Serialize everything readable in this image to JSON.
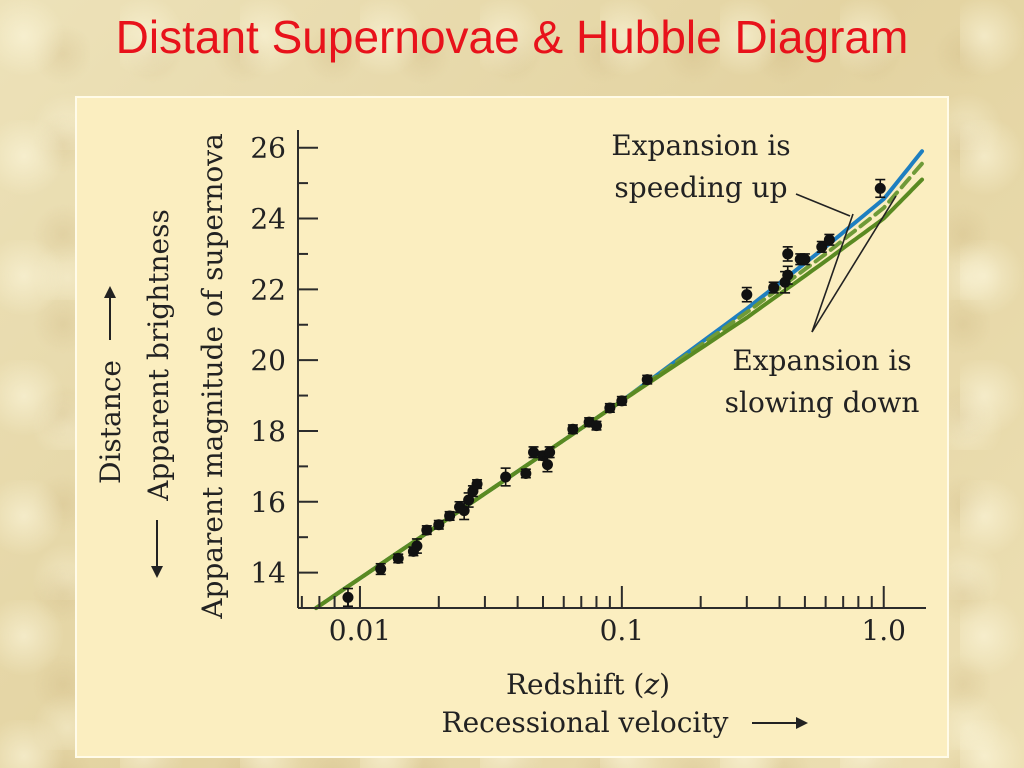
{
  "title": "Distant Supernovae & Hubble Diagram",
  "chart_data": {
    "type": "scatter",
    "x_scale": "log",
    "xlim": [
      0.0058,
      1.45
    ],
    "ylim": [
      13.0,
      26.5
    ],
    "x_ticks": [
      0.01,
      0.1,
      1.0
    ],
    "x_tick_labels": [
      "0.01",
      "0.1",
      "1.0"
    ],
    "y_ticks": [
      14,
      16,
      18,
      20,
      22,
      24,
      26
    ],
    "y_tick_labels": [
      "14",
      "16",
      "18",
      "20",
      "22",
      "24",
      "26"
    ],
    "xlabel_line1_text": "Redshift (",
    "xlabel_line1_var": "z",
    "xlabel_line1_close": ")",
    "xlabel_line2": "Recessional velocity",
    "ylabel_outer": "Distance",
    "ylabel_middle": "Apparent brightness",
    "ylabel_inner": "Apparent magnitude of supernova",
    "annotation_speeding": [
      "Expansion is",
      "speeding up"
    ],
    "annotation_slowing": [
      "Expansion is",
      "slowing down"
    ],
    "points": [
      {
        "x": 0.009,
        "y": 13.3,
        "err": 0.25
      },
      {
        "x": 0.012,
        "y": 14.1,
        "err": 0.15
      },
      {
        "x": 0.014,
        "y": 14.4,
        "err": 0.12
      },
      {
        "x": 0.016,
        "y": 14.6,
        "err": 0.12
      },
      {
        "x": 0.0165,
        "y": 14.75,
        "err": 0.2
      },
      {
        "x": 0.018,
        "y": 15.2,
        "err": 0.12
      },
      {
        "x": 0.02,
        "y": 15.35,
        "err": 0.12
      },
      {
        "x": 0.022,
        "y": 15.6,
        "err": 0.12
      },
      {
        "x": 0.024,
        "y": 15.85,
        "err": 0.15
      },
      {
        "x": 0.025,
        "y": 15.75,
        "err": 0.25
      },
      {
        "x": 0.026,
        "y": 16.05,
        "err": 0.2
      },
      {
        "x": 0.027,
        "y": 16.3,
        "err": 0.15
      },
      {
        "x": 0.028,
        "y": 16.5,
        "err": 0.12
      },
      {
        "x": 0.036,
        "y": 16.7,
        "err": 0.25
      },
      {
        "x": 0.043,
        "y": 16.8,
        "err": 0.12
      },
      {
        "x": 0.046,
        "y": 17.4,
        "err": 0.15
      },
      {
        "x": 0.05,
        "y": 17.3,
        "err": 0.12
      },
      {
        "x": 0.052,
        "y": 17.05,
        "err": 0.2
      },
      {
        "x": 0.053,
        "y": 17.4,
        "err": 0.15
      },
      {
        "x": 0.065,
        "y": 18.05,
        "err": 0.12
      },
      {
        "x": 0.075,
        "y": 18.25,
        "err": 0.12
      },
      {
        "x": 0.08,
        "y": 18.15,
        "err": 0.12
      },
      {
        "x": 0.09,
        "y": 18.65,
        "err": 0.12
      },
      {
        "x": 0.1,
        "y": 18.85,
        "err": 0.12
      },
      {
        "x": 0.125,
        "y": 19.45,
        "err": 0.12
      },
      {
        "x": 0.3,
        "y": 21.85,
        "err": 0.2
      },
      {
        "x": 0.38,
        "y": 22.05,
        "err": 0.15
      },
      {
        "x": 0.42,
        "y": 22.2,
        "err": 0.3
      },
      {
        "x": 0.43,
        "y": 22.4,
        "err": 0.25
      },
      {
        "x": 0.43,
        "y": 23.0,
        "err": 0.2
      },
      {
        "x": 0.48,
        "y": 22.85,
        "err": 0.15
      },
      {
        "x": 0.5,
        "y": 22.85,
        "err": 0.15
      },
      {
        "x": 0.58,
        "y": 23.2,
        "err": 0.15
      },
      {
        "x": 0.62,
        "y": 23.4,
        "err": 0.15
      },
      {
        "x": 0.97,
        "y": 24.85,
        "err": 0.25
      }
    ],
    "curves": [
      {
        "style": "solid",
        "color": "#1e7fc0",
        "points": [
          [
            0.0068,
            13.0
          ],
          [
            0.1,
            18.85
          ],
          [
            0.3,
            21.45
          ],
          [
            0.6,
            23.2
          ],
          [
            1.0,
            24.55
          ],
          [
            1.4,
            25.9
          ]
        ]
      },
      {
        "style": "dashed",
        "color": "#6f9a38",
        "points": [
          [
            0.0068,
            13.0
          ],
          [
            0.1,
            18.85
          ],
          [
            0.3,
            21.35
          ],
          [
            0.6,
            23.0
          ],
          [
            1.0,
            24.3
          ],
          [
            1.4,
            25.55
          ]
        ]
      },
      {
        "style": "solid",
        "color": "#5a8a22",
        "points": [
          [
            0.0068,
            13.0
          ],
          [
            0.1,
            18.85
          ],
          [
            0.3,
            21.2
          ],
          [
            0.6,
            22.8
          ],
          [
            1.0,
            24.0
          ],
          [
            1.4,
            25.1
          ]
        ]
      }
    ]
  }
}
